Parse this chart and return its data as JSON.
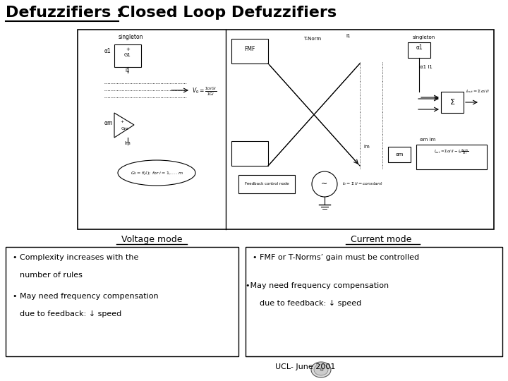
{
  "title_underlined": "Defuzzifiers : ",
  "title_rest": "Closed Loop Defuzzifiers",
  "bg_color": "#ffffff",
  "title_fontsize": 16,
  "voltage_mode_label": "Voltage mode",
  "current_mode_label": "Current mode",
  "footer": "UCL- June 2001"
}
